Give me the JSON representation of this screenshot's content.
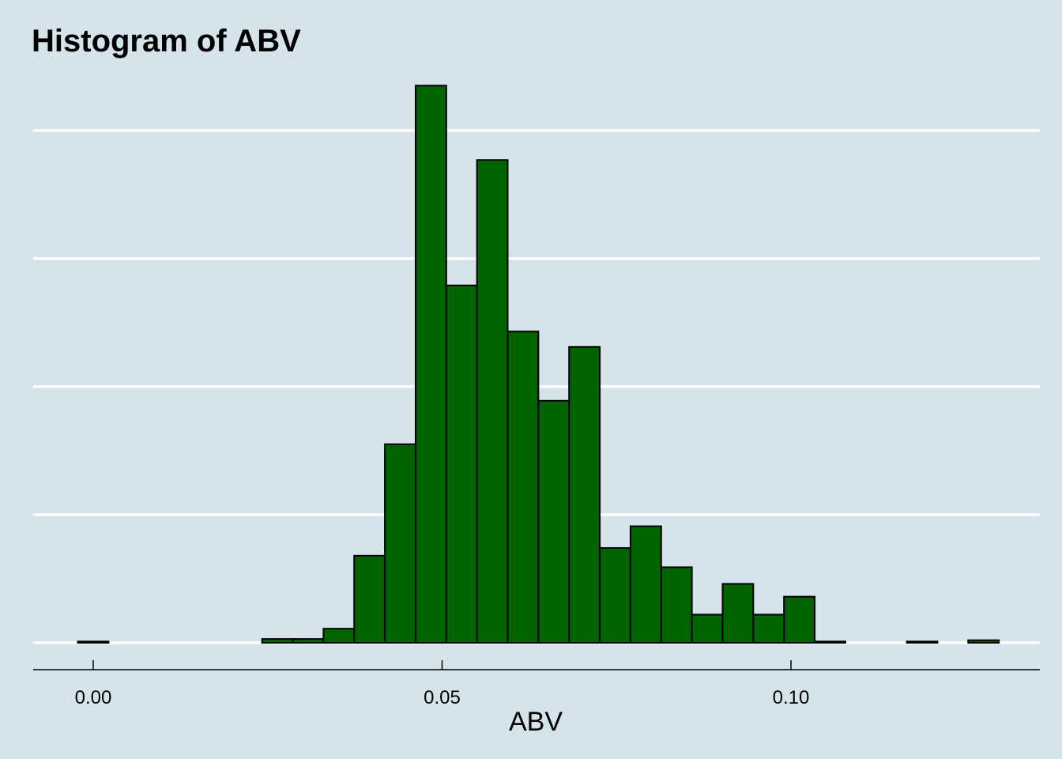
{
  "chart_data": {
    "type": "bar",
    "title": "Histogram of ABV",
    "xlabel": "ABV",
    "ylabel": "",
    "x_ticks": [
      {
        "value": 0.0,
        "label": "0.00"
      },
      {
        "value": 0.05,
        "label": "0.05"
      },
      {
        "value": 0.1,
        "label": "0.10"
      }
    ],
    "xlim": [
      -0.0087,
      0.136
    ],
    "ylim": [
      0,
      435
    ],
    "y_gridlines": [
      0,
      100,
      200,
      300,
      400
    ],
    "y_tick_labels_shown": false,
    "grid": "horizontal",
    "legend": "none",
    "bin_width": 0.0044,
    "bins": [
      {
        "x_start": -0.0022,
        "x_end": 0.0022,
        "count": 1
      },
      {
        "x_start": 0.0022,
        "x_end": 0.0066,
        "count": 0
      },
      {
        "x_start": 0.0066,
        "x_end": 0.011,
        "count": 0
      },
      {
        "x_start": 0.011,
        "x_end": 0.0154,
        "count": 0
      },
      {
        "x_start": 0.0154,
        "x_end": 0.0198,
        "count": 0
      },
      {
        "x_start": 0.0198,
        "x_end": 0.0242,
        "count": 0
      },
      {
        "x_start": 0.0242,
        "x_end": 0.0286,
        "count": 3
      },
      {
        "x_start": 0.0286,
        "x_end": 0.033,
        "count": 3
      },
      {
        "x_start": 0.033,
        "x_end": 0.0374,
        "count": 11
      },
      {
        "x_start": 0.0374,
        "x_end": 0.0418,
        "count": 68
      },
      {
        "x_start": 0.0418,
        "x_end": 0.0462,
        "count": 155
      },
      {
        "x_start": 0.0462,
        "x_end": 0.0506,
        "count": 435
      },
      {
        "x_start": 0.0506,
        "x_end": 0.055,
        "count": 279
      },
      {
        "x_start": 0.055,
        "x_end": 0.0594,
        "count": 377
      },
      {
        "x_start": 0.0594,
        "x_end": 0.0638,
        "count": 243
      },
      {
        "x_start": 0.0638,
        "x_end": 0.0682,
        "count": 189
      },
      {
        "x_start": 0.0682,
        "x_end": 0.0726,
        "count": 231
      },
      {
        "x_start": 0.0726,
        "x_end": 0.077,
        "count": 74
      },
      {
        "x_start": 0.077,
        "x_end": 0.0814,
        "count": 91
      },
      {
        "x_start": 0.0814,
        "x_end": 0.0858,
        "count": 59
      },
      {
        "x_start": 0.0858,
        "x_end": 0.0902,
        "count": 22
      },
      {
        "x_start": 0.0902,
        "x_end": 0.0946,
        "count": 46
      },
      {
        "x_start": 0.0946,
        "x_end": 0.099,
        "count": 22
      },
      {
        "x_start": 0.099,
        "x_end": 0.1034,
        "count": 36
      },
      {
        "x_start": 0.1034,
        "x_end": 0.1078,
        "count": 1
      },
      {
        "x_start": 0.1078,
        "x_end": 0.1122,
        "count": 0
      },
      {
        "x_start": 0.1122,
        "x_end": 0.1166,
        "count": 0
      },
      {
        "x_start": 0.1166,
        "x_end": 0.121,
        "count": 1
      },
      {
        "x_start": 0.121,
        "x_end": 0.1254,
        "count": 0
      },
      {
        "x_start": 0.1254,
        "x_end": 0.1298,
        "count": 2
      }
    ],
    "colors": {
      "background": "#d5e4eb",
      "bar_fill": "#006400",
      "bar_stroke": "#000000",
      "gridline": "#ffffff",
      "axis": "#000000"
    }
  }
}
